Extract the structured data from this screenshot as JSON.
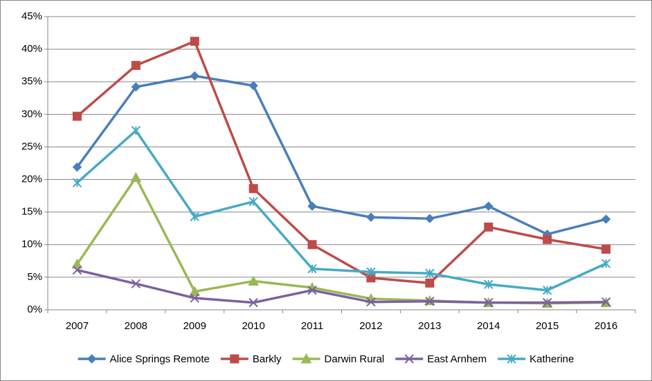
{
  "chart_data": {
    "type": "line",
    "categories": [
      "2007",
      "2008",
      "2009",
      "2010",
      "2011",
      "2012",
      "2013",
      "2014",
      "2015",
      "2016"
    ],
    "series": [
      {
        "name": "Alice Springs Remote",
        "color": "#4a7ebb",
        "marker": "diamond",
        "values": [
          21.9,
          34.2,
          35.9,
          34.4,
          15.9,
          14.2,
          14.0,
          15.9,
          11.6,
          13.9
        ]
      },
      {
        "name": "Barkly",
        "color": "#be4b48",
        "marker": "square",
        "values": [
          29.7,
          37.5,
          41.2,
          18.6,
          10.0,
          4.9,
          4.1,
          12.7,
          10.8,
          9.3
        ]
      },
      {
        "name": "Darwin Rural",
        "color": "#98b954",
        "marker": "triangle",
        "values": [
          7.0,
          20.3,
          2.8,
          4.4,
          3.4,
          1.7,
          1.4,
          1.1,
          1.0,
          1.1
        ]
      },
      {
        "name": "East Arnhem",
        "color": "#7d60a0",
        "marker": "x",
        "values": [
          6.1,
          4.0,
          1.8,
          1.1,
          3.0,
          1.2,
          1.3,
          1.1,
          1.1,
          1.2
        ]
      },
      {
        "name": "Katherine",
        "color": "#46aac5",
        "marker": "star",
        "values": [
          19.5,
          27.5,
          14.3,
          16.6,
          6.3,
          5.8,
          5.6,
          3.9,
          3.0,
          7.1
        ]
      }
    ],
    "ylim": [
      0,
      45
    ],
    "yticks": [
      {
        "value": 0,
        "label": "0%"
      },
      {
        "value": 5,
        "label": "5%"
      },
      {
        "value": 10,
        "label": "10%"
      },
      {
        "value": 15,
        "label": "15%"
      },
      {
        "value": 20,
        "label": "20%"
      },
      {
        "value": 25,
        "label": "25%"
      },
      {
        "value": 30,
        "label": "30%"
      },
      {
        "value": 35,
        "label": "35%"
      },
      {
        "value": 40,
        "label": "40%"
      },
      {
        "value": 45,
        "label": "45%"
      }
    ],
    "grid": true,
    "legend": "bottom"
  }
}
